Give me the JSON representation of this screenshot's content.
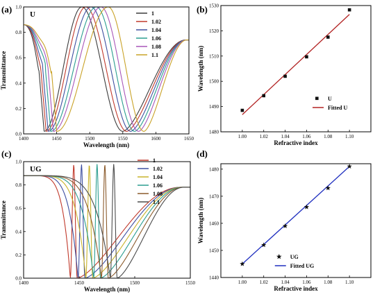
{
  "chart_data": [
    {
      "panel": "(a)",
      "inset_label": "U",
      "type": "line",
      "xlabel": "Wavelength (nm)",
      "ylabel": "Transmittance",
      "xlim": [
        1400,
        1650
      ],
      "ylim": [
        0,
        1
      ],
      "xticks": [
        1400,
        1450,
        1500,
        1550,
        1600,
        1650
      ],
      "yticks": [
        "0.0",
        "0.2",
        "0.4",
        "0.6",
        "0.8",
        "1.0"
      ],
      "legend_position": "top-right",
      "series": [
        {
          "name": "1",
          "color": "#3b3b3b",
          "dip1": 1431,
          "peak": 1488,
          "dip2": 1550
        },
        {
          "name": "1.02",
          "color": "#c0392b",
          "dip1": 1434,
          "peak": 1494,
          "dip2": 1556
        },
        {
          "name": "1.04",
          "color": "#3d4fa0",
          "dip1": 1437,
          "peak": 1502,
          "dip2": 1562
        },
        {
          "name": "1.06",
          "color": "#2a9d8f",
          "dip1": 1441,
          "peak": 1510,
          "dip2": 1568
        },
        {
          "name": "1.08",
          "color": "#a855b8",
          "dip1": 1445,
          "peak": 1517,
          "dip2": 1574
        },
        {
          "name": "1.1",
          "color": "#c9a227",
          "dip1": 1450,
          "peak": 1528,
          "dip2": 1582
        }
      ]
    },
    {
      "panel": "(b)",
      "type": "scatter",
      "xlabel": "Refractive index",
      "ylabel": "Wavelength (nm)",
      "xlim": [
        0.98,
        1.12
      ],
      "ylim": [
        1480,
        1530
      ],
      "xticks": [
        "1.00",
        "1.02",
        "1.04",
        "1.06",
        "1.08",
        "1.10"
      ],
      "yticks": [
        1480,
        1490,
        1500,
        1510,
        1520,
        1530
      ],
      "legend_position": "bottom-right",
      "points": {
        "name": "U",
        "marker": "square",
        "color": "#111111",
        "x": [
          1.0,
          1.02,
          1.04,
          1.06,
          1.08,
          1.1
        ],
        "y": [
          1488.5,
          1494.3,
          1502.0,
          1509.7,
          1517.5,
          1528.3
        ]
      },
      "fit": {
        "name": "Fitted U",
        "color": "#b22222",
        "x": [
          1.0,
          1.1
        ],
        "y": [
          1486.8,
          1526.5
        ]
      }
    },
    {
      "panel": "(c)",
      "inset_label": "UG",
      "type": "line",
      "xlabel": "Wavelength (nm)",
      "ylabel": "Transmittance",
      "xlim": [
        1400,
        1550
      ],
      "ylim": [
        0,
        1
      ],
      "xticks": [
        1400,
        1450,
        1500,
        1550
      ],
      "yticks": [
        "0.0",
        "0.2",
        "0.4",
        "0.6",
        "0.8",
        "1.0"
      ],
      "legend_position": "top-right",
      "series": [
        {
          "name": "1",
          "color": "#c0392b",
          "dip1": 1442,
          "peak": 1445,
          "dip2": 1448
        },
        {
          "name": "1.02",
          "color": "#3d4fa0",
          "dip1": 1449,
          "peak": 1452,
          "dip2": 1455
        },
        {
          "name": "1.04",
          "color": "#c9b22a",
          "dip1": 1456,
          "peak": 1459,
          "dip2": 1462
        },
        {
          "name": "1.06",
          "color": "#2a9d8f",
          "dip1": 1463,
          "peak": 1466,
          "dip2": 1469
        },
        {
          "name": "1.08",
          "color": "#8b5a2b",
          "dip1": 1470,
          "peak": 1473,
          "dip2": 1476
        },
        {
          "name": "1.1",
          "color": "#4a4a4a",
          "dip1": 1478,
          "peak": 1481,
          "dip2": 1484
        }
      ]
    },
    {
      "panel": "(d)",
      "type": "scatter",
      "xlabel": "Refractive index",
      "ylabel": "Wavelength (nm)",
      "xlim": [
        0.98,
        1.12
      ],
      "ylim": [
        1440,
        1482
      ],
      "xticks": [
        "1.00",
        "1.02",
        "1.04",
        "1.06",
        "1.08",
        "1.10"
      ],
      "yticks": [
        1440,
        1450,
        1460,
        1470,
        1480
      ],
      "legend_position": "bottom-left",
      "points": {
        "name": "UG",
        "marker": "star",
        "color": "#111111",
        "x": [
          1.0,
          1.02,
          1.04,
          1.06,
          1.08,
          1.1
        ],
        "y": [
          1445,
          1452,
          1459,
          1466,
          1473,
          1481
        ]
      },
      "fit": {
        "name": "Fitted UG",
        "color": "#1f2fbf",
        "x": [
          1.0,
          1.1
        ],
        "y": [
          1445,
          1481
        ]
      }
    }
  ]
}
